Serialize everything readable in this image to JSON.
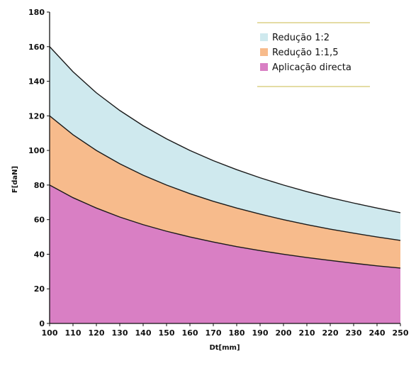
{
  "chart_data": {
    "type": "area",
    "stacked": true,
    "title": "",
    "xlabel": "Dt[mm]",
    "ylabel": "F[daN]",
    "xlim": [
      100,
      250
    ],
    "ylim": [
      0,
      180
    ],
    "x_ticks": [
      100,
      110,
      120,
      130,
      140,
      150,
      160,
      170,
      180,
      190,
      200,
      210,
      220,
      230,
      240,
      250
    ],
    "x_tick_labels": [
      "100",
      "110",
      "120",
      "130",
      "140",
      "150",
      "160",
      "170",
      "180",
      "190",
      "200",
      "210",
      "220",
      "230",
      "240",
      "250"
    ],
    "y_ticks": [
      0,
      20,
      40,
      60,
      80,
      100,
      120,
      140,
      160,
      180
    ],
    "y_tick_labels": [
      "0",
      "20",
      "40",
      "60",
      "80",
      "100",
      "120",
      "140",
      "160",
      "180"
    ],
    "grid": false,
    "legend_position": "top-right",
    "x": [
      100,
      110,
      120,
      130,
      140,
      150,
      160,
      170,
      180,
      190,
      200,
      210,
      220,
      230,
      240,
      250
    ],
    "series": [
      {
        "name": "Aplicação directa",
        "color": "#d97fc4",
        "values": [
          80,
          72.7,
          66.7,
          61.5,
          57.1,
          53.3,
          50,
          47.1,
          44.4,
          42.1,
          40,
          38.1,
          36.4,
          34.8,
          33.3,
          32
        ]
      },
      {
        "name": "Redução 1:1,5",
        "color": "#f7bb8c",
        "values": [
          120,
          109.1,
          100,
          92.3,
          85.7,
          80,
          75,
          70.6,
          66.7,
          63.2,
          60,
          57.1,
          54.5,
          52.2,
          50,
          48
        ]
      },
      {
        "name": "Redução 1:2",
        "color": "#cfe9ee",
        "values": [
          160,
          145.5,
          133.3,
          123.1,
          114.3,
          106.7,
          100,
          94.1,
          88.9,
          84.2,
          80,
          76.2,
          72.7,
          69.6,
          66.7,
          64
        ]
      }
    ],
    "legend_order": [
      "Redução 1:2",
      "Redução 1:1,5",
      "Aplicação directa"
    ],
    "line_color": "#1a1a1a",
    "legend_rule_color": "#c8b84a"
  }
}
